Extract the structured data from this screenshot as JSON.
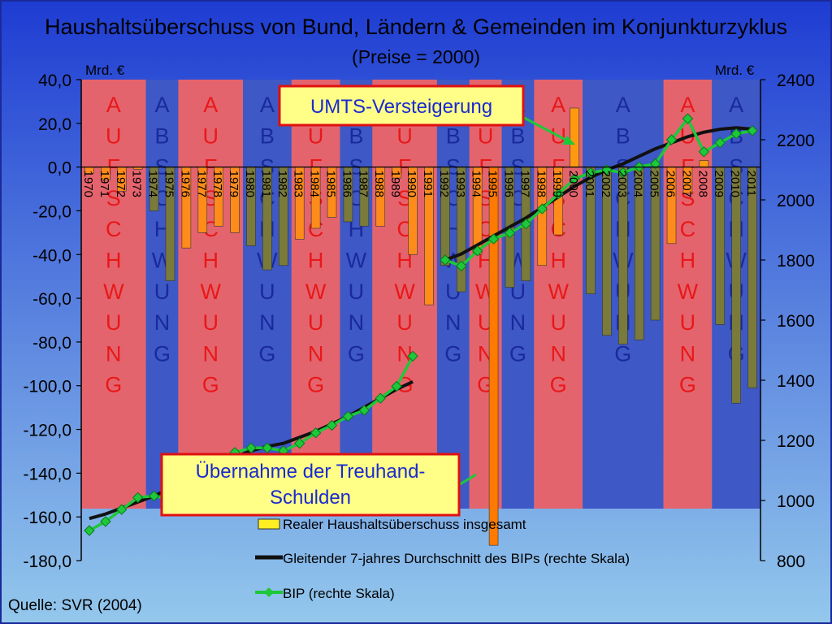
{
  "title": "Haushaltsüberschuss von Bund, Ländern & Gemeinden im Konjunkturzyklus",
  "subtitle": "(Preise = 2000)",
  "source": "Quelle: SVR (2004)",
  "colors": {
    "background_top": "#1e3cd2",
    "background_bottom": "#94c8ec",
    "aufschwung_band": "#e4646e",
    "abschwung_band": "#3e58c6",
    "bar_positive": "#ff9a10",
    "bar_negative_aufschwung": "#ff8c1a",
    "bar_negative_abschwung": "#7a7a3a",
    "avg_line": "#111111",
    "bip_line": "#1ec83a",
    "callout_bg": "#ffff88",
    "callout_border": "#e01010"
  },
  "annotations": [
    {
      "text": "UMTS-Versteigerung"
    },
    {
      "text_line1": "Übernahme der Treuhand-",
      "text_line2": "Schulden"
    }
  ],
  "chart_data": {
    "type": "bar",
    "title": "Haushaltsüberschuss von Bund, Ländern & Gemeinden im Konjunkturzyklus",
    "subtitle": "(Preise = 2000)",
    "y_left": {
      "label": "Mrd. €",
      "range": [
        -180,
        40
      ],
      "ticks": [
        "40,0",
        "20,0",
        "0,0",
        "-20,0",
        "-40,0",
        "-60,0",
        "-80,0",
        "-100,0",
        "-120,0",
        "-140,0",
        "-160,0",
        "-180,0"
      ]
    },
    "y_right": {
      "label": "Mrd. €",
      "range": [
        800,
        2400
      ],
      "ticks": [
        "2400",
        "2200",
        "2000",
        "1800",
        "1600",
        "1400",
        "1200",
        "1000",
        "800"
      ]
    },
    "categories": [
      "1970",
      "1971",
      "1972",
      "1973",
      "1974",
      "1975",
      "1976",
      "1977",
      "1978",
      "1979",
      "1980",
      "1981",
      "1982",
      "1983",
      "1984",
      "1985",
      "1986",
      "1987",
      "1988",
      "1989",
      "1990",
      "1991",
      "1992",
      "1993",
      "1994",
      "1995",
      "1996",
      "1997",
      "1998",
      "1999",
      "2000",
      "2001",
      "2002",
      "2003",
      "2004",
      "2005",
      "2006",
      "2007",
      "2008",
      "2009",
      "2010",
      "2011"
    ],
    "phases": [
      {
        "label": "AUFSCHWUNG",
        "type": "auf",
        "from": 1970,
        "to": 1973
      },
      {
        "label": "ABSCHWUNG",
        "type": "ab",
        "from": 1974,
        "to": 1975
      },
      {
        "label": "AUFSCHWUNG",
        "type": "auf",
        "from": 1976,
        "to": 1979
      },
      {
        "label": "ABSCHWUNG",
        "type": "ab",
        "from": 1980,
        "to": 1982
      },
      {
        "label": "AUFSCHWUNG",
        "type": "auf",
        "from": 1983,
        "to": 1985
      },
      {
        "label": "ABSCHWUNG",
        "type": "ab",
        "from": 1986,
        "to": 1987
      },
      {
        "label": "AUFSCHWUNG",
        "type": "auf",
        "from": 1988,
        "to": 1991
      },
      {
        "label": "ABSCHWUNG",
        "type": "ab",
        "from": 1992,
        "to": 1993
      },
      {
        "label": "AUFSCHWUNG",
        "type": "auf",
        "from": 1994,
        "to": 1995
      },
      {
        "label": "ABSCHWUNG",
        "type": "ab",
        "from": 1996,
        "to": 1997
      },
      {
        "label": "AUFSCHWUNG",
        "type": "auf",
        "from": 1998,
        "to": 2000
      },
      {
        "label": "ABSCHWUNG",
        "type": "ab",
        "from": 2001,
        "to": 2005
      },
      {
        "label": "AUFSCHWUNG",
        "type": "auf",
        "from": 2006,
        "to": 2008
      },
      {
        "label": "ABSCHWUNG",
        "type": "ab",
        "from": 2009,
        "to": 2011
      }
    ],
    "series": [
      {
        "name": "Realer Haushaltsüberschuss insgesamt",
        "type": "bar",
        "axis": "left",
        "values": [
          -3,
          -6,
          -11,
          -1,
          -20,
          -52,
          -37,
          -30,
          -27,
          -30,
          -36,
          -47,
          -45,
          -33,
          -28,
          -23,
          -25,
          -27,
          -27,
          -5,
          -40,
          -63,
          -45,
          -57,
          -40,
          -173,
          -55,
          -52,
          -45,
          -31,
          27,
          -58,
          -77,
          -81,
          -79,
          -70,
          -35,
          -12,
          3,
          -72,
          -108,
          -101
        ]
      },
      {
        "name": "Gleitender 7-jahres Durchschnitt des BIPs (rechte Skala)",
        "type": "line",
        "axis": "right",
        "x": [
          1970,
          1971,
          1972,
          1973,
          1974,
          1975,
          1976,
          1977,
          1978,
          1979,
          1980,
          1981,
          1982,
          1983,
          1984,
          1985,
          1986,
          1987,
          1988,
          1989,
          1990,
          1992,
          1993,
          1994,
          1995,
          1996,
          1997,
          1998,
          1999,
          2000,
          2001,
          2002,
          2003,
          2004,
          2005,
          2006,
          2007,
          2008,
          2009,
          2010,
          2011
        ],
        "values": [
          940,
          955,
          975,
          995,
          1015,
          1040,
          1065,
          1095,
          1120,
          1145,
          1165,
          1180,
          1190,
          1210,
          1230,
          1255,
          1280,
          1310,
          1340,
          1370,
          1395,
          1800,
          1820,
          1850,
          1880,
          1910,
          1940,
          1975,
          2010,
          2045,
          2075,
          2100,
          2120,
          2145,
          2170,
          2190,
          2210,
          2225,
          2235,
          2240,
          2235
        ]
      },
      {
        "name": "BIP (rechte Skala)",
        "type": "line",
        "axis": "right",
        "x": [
          1970,
          1971,
          1972,
          1973,
          1974,
          1975,
          1976,
          1977,
          1978,
          1979,
          1980,
          1981,
          1982,
          1983,
          1984,
          1985,
          1986,
          1987,
          1988,
          1989,
          1990,
          1991,
          1992,
          1993,
          1994,
          1995,
          1996,
          1997,
          1998,
          1999,
          2000,
          2001,
          2002,
          2003,
          2004,
          2005,
          2006,
          2007,
          2008,
          2009,
          2010,
          2011
        ],
        "values": [
          900,
          930,
          970,
          1010,
          1015,
          1005,
          1055,
          1085,
          1120,
          1160,
          1175,
          1175,
          1165,
          1190,
          1225,
          1250,
          1280,
          1300,
          1340,
          1380,
          1480,
          1090,
          1800,
          1780,
          1830,
          1870,
          1890,
          1920,
          1970,
          2020,
          2070,
          2090,
          2100,
          2090,
          2110,
          2120,
          2200,
          2270,
          2160,
          2190,
          2220,
          2230
        ]
      }
    ],
    "legend": {
      "placement": "bottom-center",
      "entries": [
        "Realer Haushaltsüberschuss insgesamt",
        "Gleitender 7-jahres Durchschnitt des BIPs (rechte Skala)",
        "BIP (rechte Skala)"
      ]
    },
    "grid": false
  }
}
